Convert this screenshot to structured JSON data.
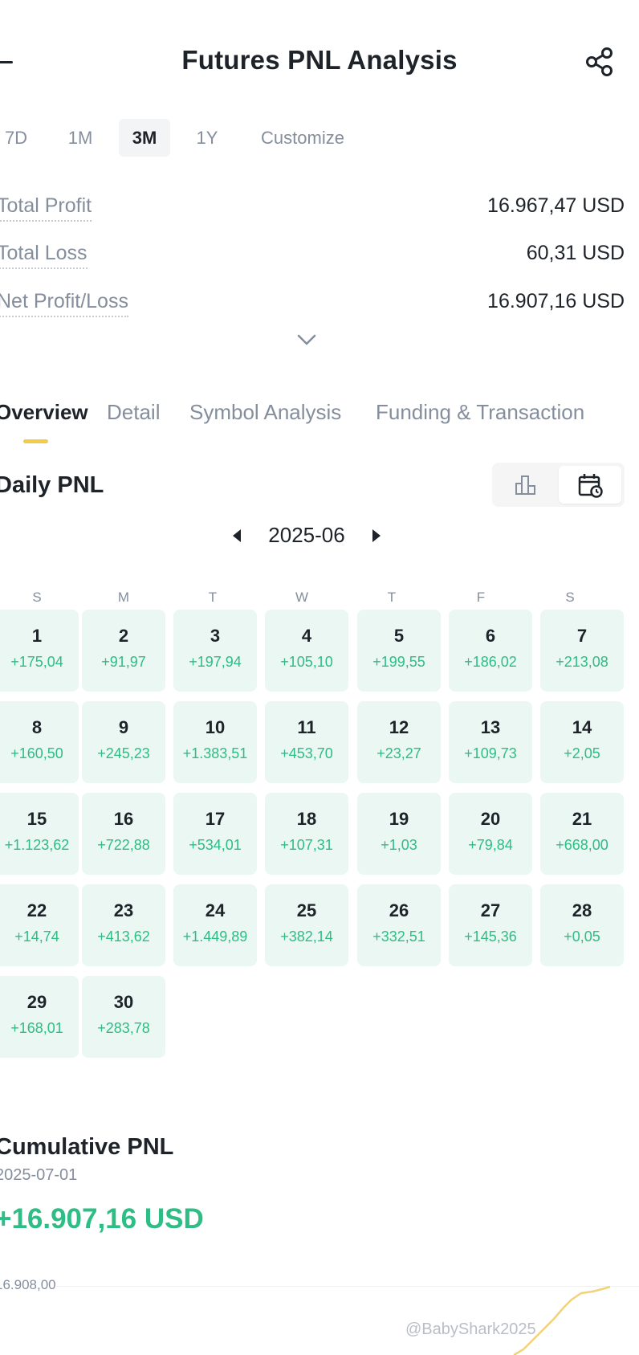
{
  "header": {
    "title": "Futures PNL Analysis"
  },
  "ranges": [
    {
      "label": "7D",
      "active": false
    },
    {
      "label": "1M",
      "active": false
    },
    {
      "label": "3M",
      "active": true
    },
    {
      "label": "1Y",
      "active": false
    },
    {
      "label": "Customize",
      "active": false
    }
  ],
  "stats": [
    {
      "label": "Total Profit",
      "value": "16.967,47 USD"
    },
    {
      "label": "Total Loss",
      "value": "60,31 USD"
    },
    {
      "label": "Net Profit/Loss",
      "value": "16.907,16 USD"
    }
  ],
  "tabs": [
    {
      "label": "Overview",
      "active": true
    },
    {
      "label": "Detail",
      "active": false
    },
    {
      "label": "Symbol Analysis",
      "active": false
    },
    {
      "label": "Funding & Transaction",
      "active": false
    }
  ],
  "daily": {
    "title": "Daily PNL",
    "month": "2025-06",
    "weekdays": [
      "S",
      "M",
      "T",
      "W",
      "T",
      "F",
      "S"
    ],
    "days": [
      {
        "day": "1",
        "pnl": "+175,04"
      },
      {
        "day": "2",
        "pnl": "+91,97"
      },
      {
        "day": "3",
        "pnl": "+197,94"
      },
      {
        "day": "4",
        "pnl": "+105,10"
      },
      {
        "day": "5",
        "pnl": "+199,55"
      },
      {
        "day": "6",
        "pnl": "+186,02"
      },
      {
        "day": "7",
        "pnl": "+213,08"
      },
      {
        "day": "8",
        "pnl": "+160,50"
      },
      {
        "day": "9",
        "pnl": "+245,23"
      },
      {
        "day": "10",
        "pnl": "+1.383,51"
      },
      {
        "day": "11",
        "pnl": "+453,70"
      },
      {
        "day": "12",
        "pnl": "+23,27"
      },
      {
        "day": "13",
        "pnl": "+109,73"
      },
      {
        "day": "14",
        "pnl": "+2,05"
      },
      {
        "day": "15",
        "pnl": "+1.123,62"
      },
      {
        "day": "16",
        "pnl": "+722,88"
      },
      {
        "day": "17",
        "pnl": "+534,01"
      },
      {
        "day": "18",
        "pnl": "+107,31"
      },
      {
        "day": "19",
        "pnl": "+1,03"
      },
      {
        "day": "20",
        "pnl": "+79,84"
      },
      {
        "day": "21",
        "pnl": "+668,00"
      },
      {
        "day": "22",
        "pnl": "+14,74"
      },
      {
        "day": "23",
        "pnl": "+413,62"
      },
      {
        "day": "24",
        "pnl": "+1.449,89"
      },
      {
        "day": "25",
        "pnl": "+382,14"
      },
      {
        "day": "26",
        "pnl": "+332,51"
      },
      {
        "day": "27",
        "pnl": "+145,36"
      },
      {
        "day": "28",
        "pnl": "+0,05"
      },
      {
        "day": "29",
        "pnl": "+168,01"
      },
      {
        "day": "30",
        "pnl": "+283,78"
      }
    ]
  },
  "cumulative": {
    "title": "Cumulative PNL",
    "date": "2025-07-01",
    "value": "+16.907,16 USD",
    "axis_top_label": "16.908,00"
  },
  "watermark": "@BabyShark2025",
  "icons": {
    "back": "back-arrow-icon",
    "share": "share-icon",
    "expand": "chevron-down-icon",
    "bar_view": "bar-chart-icon",
    "calendar_view": "calendar-icon"
  },
  "colors": {
    "positive": "#2ebd85",
    "accent": "#f0b90b",
    "muted": "#848e9c",
    "cell_bg": "#eaf7f2"
  }
}
